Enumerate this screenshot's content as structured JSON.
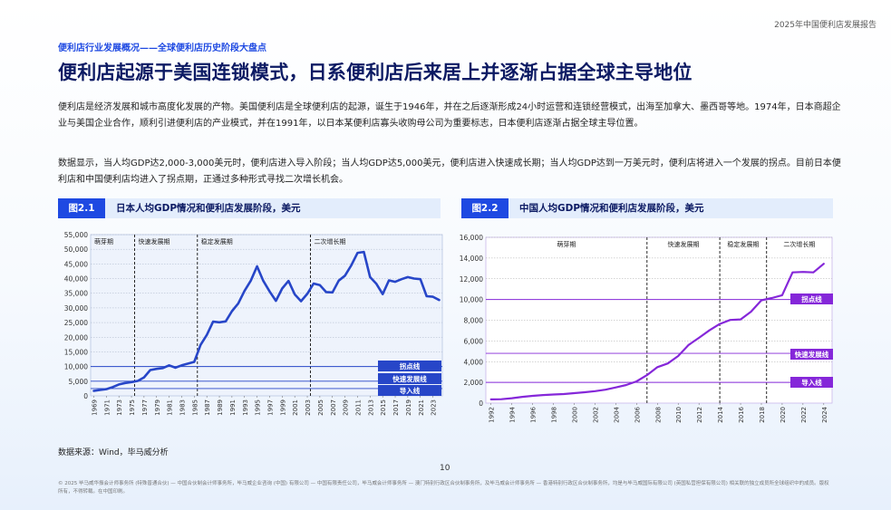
{
  "report_name": "2025年中国便利店发展报告",
  "section_subtitle": "便利店行业发展概况——全球便利店历史阶段大盘点",
  "headline": "便利店起源于美国连锁模式，日系便利店后来居上并逐渐占据全球主导地位",
  "paragraph1": "便利店是经济发展和城市高度化发展的产物。美国便利店是全球便利店的起源，诞生于1946年，并在之后逐渐形成24小时运营和连锁经营模式，出海至加拿大、墨西哥等地。1974年，日本商超企业与美国企业合作，顺利引进便利店的产业模式，并在1991年，以日本某便利店寡头收购母公司为重要标志，日本便利店逐渐占据全球主导位置。",
  "paragraph2": "数据显示，当人均GDP达2,000-3,000美元时，便利店进入导入阶段；当人均GDP达5,000美元，便利店进入快速成长期；当人均GDP达到一万美元时，便利店将进入一个发展的拐点。目前日本便利店和中国便利店均进入了拐点期，正通过多种形式寻找二次增长机会。",
  "figure1": {
    "tag": "图2.1",
    "title": "日本人均GDP情况和便利店发展阶段，美元"
  },
  "figure2": {
    "tag": "图2.2",
    "title": "中国人均GDP情况和便利店发展阶段，美元"
  },
  "source": "数据来源：Wind，毕马威分析",
  "page_number": "10",
  "footer": "© 2025 毕马威华振会计师事务所 (特殊普通合伙) — 中国合伙制会计师事务所，毕马威企业咨询 (中国) 有限公司 — 中国有限责任公司，毕马威会计师事务所 — 澳门特别行政区合伙制事务所，及毕马威会计师事务所 — 香港特别行政区合伙制事务所，均是与毕马威国际有限公司 (英国私营担保有限公司) 相关联的独立成员所全球组织中的成员。版权所有，不得转载。在中国印刷。",
  "chart_data": [
    {
      "type": "line",
      "title": "日本人均GDP情况和便利店发展阶段，美元",
      "color": "#2746c8",
      "x_ticks": [
        "1969",
        "1971",
        "1973",
        "1975",
        "1977",
        "1979",
        "1981",
        "1983",
        "1985",
        "1987",
        "1989",
        "1991",
        "1993",
        "1995",
        "1997",
        "1999",
        "2001",
        "2003",
        "2005",
        "2007",
        "2009",
        "2011",
        "2013",
        "2015",
        "2017",
        "2019",
        "2021",
        "2023"
      ],
      "x": [
        1969,
        1970,
        1971,
        1972,
        1973,
        1974,
        1975,
        1976,
        1977,
        1978,
        1979,
        1980,
        1981,
        1982,
        1983,
        1984,
        1985,
        1986,
        1987,
        1988,
        1989,
        1990,
        1991,
        1992,
        1993,
        1994,
        1995,
        1996,
        1997,
        1998,
        1999,
        2000,
        2001,
        2002,
        2003,
        2004,
        2005,
        2006,
        2007,
        2008,
        2009,
        2010,
        2011,
        2012,
        2013,
        2014,
        2015,
        2016,
        2017,
        2018,
        2019,
        2020,
        2021,
        2022,
        2023,
        2024
      ],
      "y": [
        1700,
        2000,
        2300,
        3000,
        3900,
        4400,
        4700,
        5100,
        6300,
        8800,
        9200,
        9500,
        10400,
        9600,
        10400,
        11000,
        11600,
        17400,
        20800,
        25300,
        25100,
        25400,
        28900,
        31500,
        35800,
        39300,
        44200,
        39200,
        35600,
        32400,
        36600,
        39200,
        34600,
        32300,
        34800,
        38300,
        37800,
        35400,
        35300,
        39300,
        41000,
        44500,
        48800,
        49100,
        40500,
        38200,
        34700,
        39400,
        38900,
        39800,
        40500,
        40000,
        39800,
        34000,
        33800,
        32700
      ],
      "ylim": [
        0,
        55000
      ],
      "y_ticks": [
        "0",
        "5,000",
        "10,000",
        "15,000",
        "20,000",
        "25,000",
        "30,000",
        "35,000",
        "40,000",
        "45,000",
        "50,000",
        "55,000"
      ],
      "phases": [
        "萌芽期",
        "快速发展期",
        "稳定发展期",
        "二次增长期"
      ],
      "phase_boundaries": [
        1975.5,
        1985.5,
        2003.5
      ],
      "thresholds": [
        {
          "label": "拐点线",
          "value": 10000
        },
        {
          "label": "快速发展线",
          "value": 5000
        },
        {
          "label": "导入线",
          "value": 2500
        }
      ]
    },
    {
      "type": "line",
      "title": "中国人均GDP情况和便利店发展阶段，美元",
      "color": "#8527d9",
      "x_ticks": [
        "1992",
        "1994",
        "1996",
        "1998",
        "2000",
        "2002",
        "2004",
        "2006",
        "2008",
        "2010",
        "2012",
        "2014",
        "2016",
        "2018",
        "2020",
        "2022",
        "2024"
      ],
      "x": [
        1992,
        1993,
        1994,
        1995,
        1996,
        1997,
        1998,
        1999,
        2000,
        2001,
        2002,
        2003,
        2004,
        2005,
        2006,
        2007,
        2008,
        2009,
        2010,
        2011,
        2012,
        2013,
        2014,
        2015,
        2016,
        2017,
        2018,
        2019,
        2020,
        2021,
        2022,
        2023,
        2024
      ],
      "y": [
        360,
        380,
        470,
        600,
        700,
        780,
        830,
        870,
        960,
        1050,
        1150,
        1290,
        1510,
        1750,
        2100,
        2700,
        3470,
        3830,
        4550,
        5610,
        6300,
        7020,
        7640,
        8030,
        8080,
        8820,
        9920,
        10140,
        10410,
        12620,
        12660,
        12620,
        13450
      ],
      "ylim": [
        0,
        16000
      ],
      "y_ticks": [
        "0",
        "2,000",
        "4,000",
        "6,000",
        "8,000",
        "10,000",
        "12,000",
        "14,000",
        "16,000"
      ],
      "phases": [
        "萌芽期",
        "快速发展期",
        "稳定发展期",
        "二次增长期"
      ],
      "phase_boundaries": [
        2007,
        2014,
        2018.5
      ],
      "thresholds": [
        {
          "label": "拐点线",
          "value": 10000
        },
        {
          "label": "快速发展线",
          "value": 4800
        },
        {
          "label": "导入线",
          "value": 2000
        }
      ]
    }
  ]
}
